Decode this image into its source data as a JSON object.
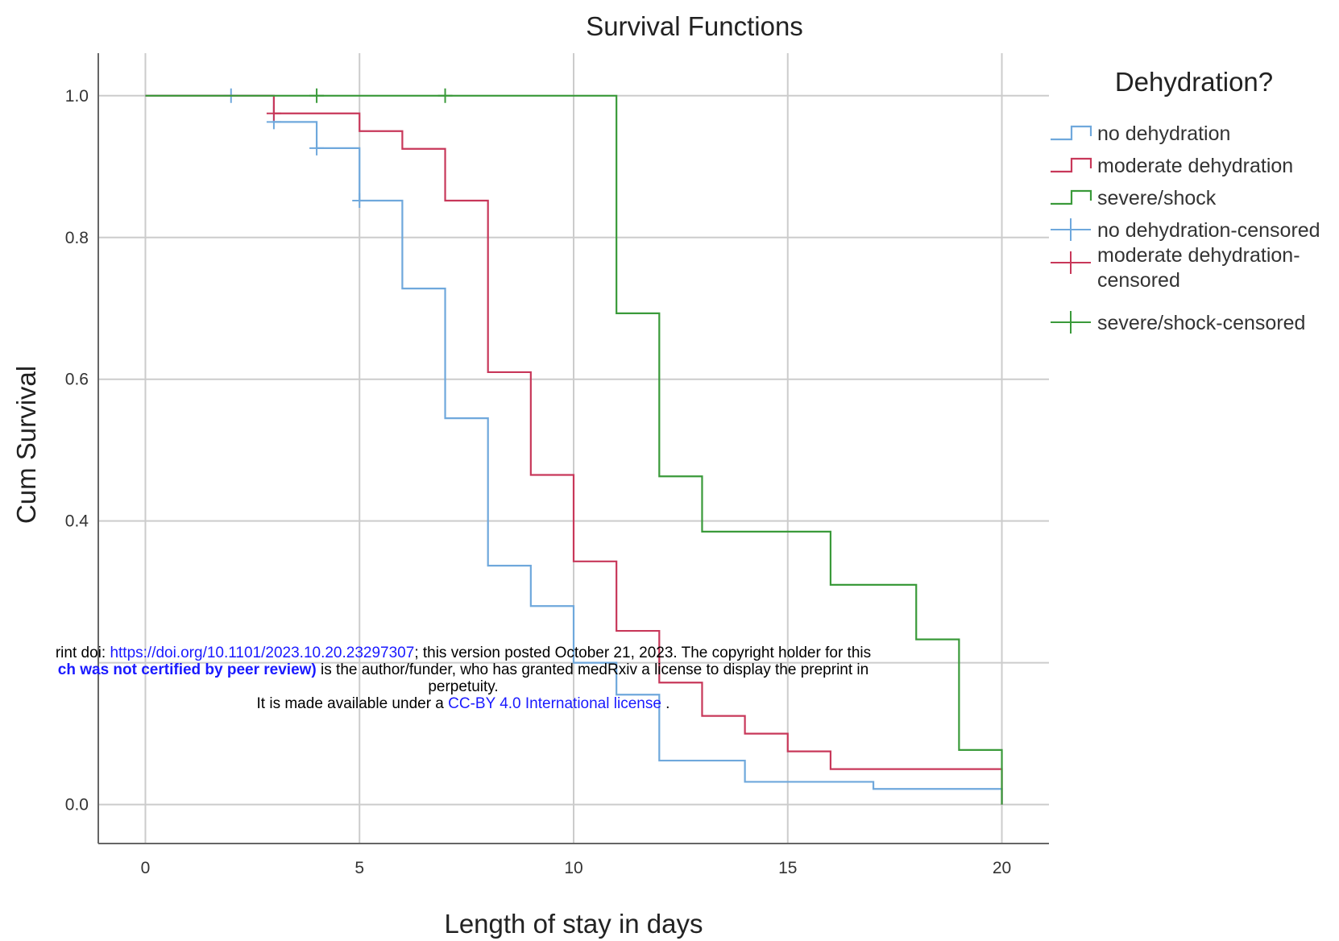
{
  "chart_data": {
    "type": "line",
    "title": "Survival Functions",
    "xlabel": "Length of stay in days",
    "ylabel": "Cum Survival",
    "xlim": [
      -1.1,
      21.1
    ],
    "ylim": [
      -0.055,
      1.06
    ],
    "x_ticks": [
      0,
      5,
      10,
      15,
      20
    ],
    "y_ticks": [
      0.0,
      0.2,
      0.4,
      0.6,
      0.8,
      1.0
    ],
    "x_tick_labels": [
      "0",
      "5",
      "10",
      "15",
      "20"
    ],
    "y_tick_labels": [
      "0.0",
      "",
      "0.4",
      "0.6",
      "0.8",
      "1.0"
    ],
    "grid": true,
    "legend_title": "Dehydration?",
    "legend_position": "right",
    "series": [
      {
        "name": "no dehydration",
        "color": "#6fa8dc",
        "steps": [
          [
            0,
            1.0
          ],
          [
            3,
            0.963
          ],
          [
            4,
            0.926
          ],
          [
            5,
            0.852
          ],
          [
            6,
            0.728
          ],
          [
            7,
            0.545
          ],
          [
            8,
            0.337
          ],
          [
            9,
            0.28
          ],
          [
            10,
            0.2
          ],
          [
            11,
            0.155
          ],
          [
            12,
            0.062
          ],
          [
            14,
            0.032
          ],
          [
            17,
            0.022
          ],
          [
            20,
            0.0
          ]
        ],
        "censored": [
          [
            2,
            1.0
          ],
          [
            3,
            0.963
          ],
          [
            4,
            0.926
          ],
          [
            5,
            0.852
          ]
        ]
      },
      {
        "name": "moderate dehydration",
        "color": "#c8385a",
        "steps": [
          [
            0,
            1.0
          ],
          [
            3,
            0.975
          ],
          [
            5,
            0.95
          ],
          [
            6,
            0.925
          ],
          [
            7,
            0.852
          ],
          [
            8,
            0.61
          ],
          [
            9,
            0.465
          ],
          [
            10,
            0.343
          ],
          [
            11,
            0.245
          ],
          [
            12,
            0.172
          ],
          [
            13,
            0.125
          ],
          [
            14,
            0.1
          ],
          [
            15,
            0.075
          ],
          [
            16,
            0.05
          ],
          [
            20,
            0.0
          ]
        ],
        "censored": [
          [
            3,
            0.975
          ]
        ]
      },
      {
        "name": "severe/shock",
        "color": "#3a9a3a",
        "steps": [
          [
            0,
            1.0
          ],
          [
            11,
            0.693
          ],
          [
            12,
            0.463
          ],
          [
            13,
            0.385
          ],
          [
            16,
            0.31
          ],
          [
            18,
            0.233
          ],
          [
            19,
            0.077
          ],
          [
            20,
            0.0
          ]
        ],
        "censored": [
          [
            4,
            1.0
          ],
          [
            7,
            1.0
          ]
        ]
      }
    ],
    "legend_entries": [
      {
        "label": "no dehydration",
        "color": "#6fa8dc",
        "kind": "step"
      },
      {
        "label": "moderate dehydration",
        "color": "#c8385a",
        "kind": "step"
      },
      {
        "label": "severe/shock",
        "color": "#3a9a3a",
        "kind": "step"
      },
      {
        "label": "no dehydration-censored",
        "color": "#6fa8dc",
        "kind": "cross"
      },
      {
        "label": "moderate dehydration-censored",
        "label_lines": [
          "moderate dehydration-",
          "censored"
        ],
        "color": "#c8385a",
        "kind": "cross"
      },
      {
        "label": "severe/shock-censored",
        "color": "#3a9a3a",
        "kind": "cross"
      }
    ]
  },
  "notice": {
    "line1_prefix": "rint doi: ",
    "line1_link": "https://doi.org/10.1101/2023.10.20.23297307",
    "line1_suffix": "; this version posted October 21, 2023. The copyright holder for this",
    "line2_bold": "ch was not certified by peer review)",
    "line2_suffix": " is the author/funder, who has granted medRxiv a license to display the preprint in",
    "line3": "perpetuity.",
    "line4_prefix": "It is made available under a ",
    "line4_link": "CC-BY 4.0 International license",
    "line4_suffix": " ."
  }
}
